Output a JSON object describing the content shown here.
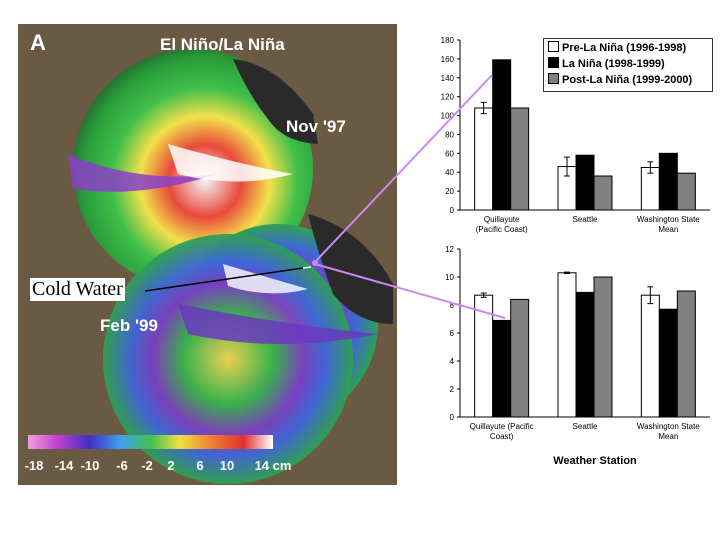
{
  "map": {
    "panel_letter": "A",
    "title": "El Niño/La Niña",
    "date_top": "Nov '97",
    "date_bottom": "Feb '99",
    "scale_ticks": [
      "-18",
      "-14",
      "-10",
      "-6",
      "-2",
      "2",
      "6",
      "10",
      "14 cm"
    ],
    "callout": "Cold Water",
    "colors": {
      "panel_bg": "#6b5a43",
      "callout_line": "#cc88ee"
    }
  },
  "chart_data": [
    {
      "type": "bar",
      "title": "",
      "xlabel": "",
      "ylabel": "",
      "ylim": [
        0,
        180
      ],
      "yticks": [
        "0",
        "20",
        "40",
        "60",
        "80",
        "100",
        "120",
        "140",
        "160",
        "180"
      ],
      "categories": [
        "Quillayute (Pacific Coast)",
        "Seattle",
        "Washington State Mean"
      ],
      "series": [
        {
          "name": "Pre-La Niña (1996-1998)",
          "color": "#ffffff",
          "values": [
            108,
            46,
            45
          ],
          "error": [
            6,
            10,
            6
          ]
        },
        {
          "name": "La Niña (1998-1999)",
          "color": "#000000",
          "values": [
            159,
            58,
            60
          ]
        },
        {
          "name": "Post-La Niña (1999-2000)",
          "color": "#808080",
          "values": [
            108,
            36,
            39
          ]
        }
      ],
      "legend": "top-right"
    },
    {
      "type": "bar",
      "title": "",
      "xlabel": "Weather Station",
      "ylabel": "",
      "ylim": [
        0,
        12
      ],
      "yticks": [
        "0",
        "2",
        "4",
        "6",
        "8",
        "10",
        "12"
      ],
      "categories": [
        "Quillayute (Pacific Coast)",
        "Seattle",
        "Washington State Mean"
      ],
      "series": [
        {
          "name": "Pre-La Niña (1996-1998)",
          "color": "#ffffff",
          "values": [
            8.7,
            10.3,
            8.7
          ],
          "error": [
            0.15,
            0.05,
            0.6
          ]
        },
        {
          "name": "La Niña (1998-1999)",
          "color": "#000000",
          "values": [
            6.9,
            8.9,
            7.7
          ]
        },
        {
          "name": "Post-La Niña (1999-2000)",
          "color": "#808080",
          "values": [
            8.4,
            10.0,
            9.0
          ]
        }
      ]
    }
  ]
}
